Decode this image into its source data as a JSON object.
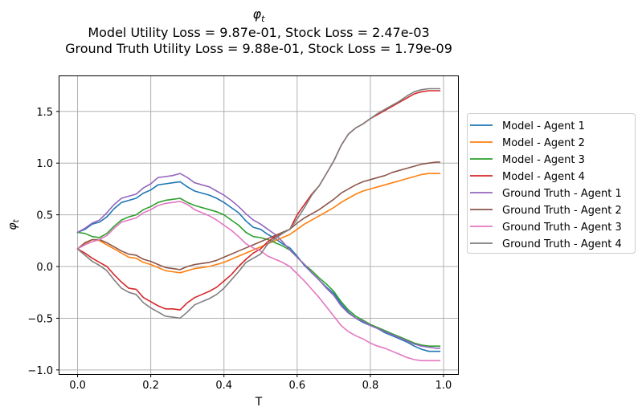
{
  "chart_data": {
    "type": "line",
    "title_symbol": "φ",
    "title_subscript": "t",
    "title_line2": "Model Utility Loss = 9.87e-01, Stock Loss = 2.47e-03",
    "title_line3": "Ground Truth Utility Loss = 9.88e-01, Stock Loss = 1.79e-09",
    "xlabel": "T",
    "ylabel_symbol": "φ",
    "ylabel_subscript": "t",
    "xlim": [
      -0.0495,
      1.0395
    ],
    "ylim": [
      -1.04,
      1.84
    ],
    "xticks": [
      0.0,
      0.2,
      0.4,
      0.6,
      0.8,
      1.0
    ],
    "xtick_labels": [
      "0.0",
      "0.2",
      "0.4",
      "0.6",
      "0.8",
      "1.0"
    ],
    "yticks": [
      -1.0,
      -0.5,
      0.0,
      0.5,
      1.0,
      1.5
    ],
    "ytick_labels": [
      "−1.0",
      "−0.5",
      "0.0",
      "0.5",
      "1.0",
      "1.5"
    ],
    "grid": true,
    "legend_position": "right, outside",
    "x": [
      0.0,
      0.02,
      0.04,
      0.06,
      0.08,
      0.1,
      0.12,
      0.14,
      0.16,
      0.18,
      0.2,
      0.22,
      0.24,
      0.26,
      0.28,
      0.3,
      0.32,
      0.34,
      0.36,
      0.38,
      0.4,
      0.42,
      0.44,
      0.46,
      0.48,
      0.5,
      0.52,
      0.54,
      0.56,
      0.58,
      0.6,
      0.62,
      0.64,
      0.66,
      0.68,
      0.7,
      0.72,
      0.74,
      0.76,
      0.78,
      0.8,
      0.82,
      0.84,
      0.86,
      0.88,
      0.9,
      0.92,
      0.94,
      0.96,
      0.98,
      0.99
    ],
    "series": [
      {
        "name": "Model - Agent 1",
        "color": "#1f77b4",
        "values": [
          0.33,
          0.36,
          0.41,
          0.43,
          0.48,
          0.56,
          0.62,
          0.64,
          0.66,
          0.71,
          0.74,
          0.79,
          0.8,
          0.81,
          0.82,
          0.77,
          0.73,
          0.71,
          0.69,
          0.66,
          0.62,
          0.57,
          0.52,
          0.44,
          0.38,
          0.36,
          0.31,
          0.27,
          0.22,
          0.18,
          0.1,
          0.01,
          -0.06,
          -0.13,
          -0.2,
          -0.26,
          -0.36,
          -0.44,
          -0.5,
          -0.54,
          -0.57,
          -0.6,
          -0.64,
          -0.67,
          -0.7,
          -0.73,
          -0.77,
          -0.8,
          -0.82,
          -0.82,
          -0.82
        ]
      },
      {
        "name": "Model - Agent 2",
        "color": "#ff7f0e",
        "values": [
          0.17,
          0.22,
          0.26,
          0.25,
          0.21,
          0.17,
          0.13,
          0.09,
          0.08,
          0.04,
          0.02,
          -0.01,
          -0.04,
          -0.05,
          -0.06,
          -0.04,
          -0.02,
          -0.01,
          0.0,
          0.02,
          0.04,
          0.07,
          0.1,
          0.13,
          0.16,
          0.19,
          0.22,
          0.25,
          0.28,
          0.31,
          0.36,
          0.41,
          0.45,
          0.49,
          0.53,
          0.57,
          0.62,
          0.66,
          0.7,
          0.73,
          0.75,
          0.77,
          0.79,
          0.81,
          0.83,
          0.85,
          0.87,
          0.89,
          0.9,
          0.9,
          0.9
        ]
      },
      {
        "name": "Model - Agent 3",
        "color": "#2ca02c",
        "values": [
          0.33,
          0.32,
          0.29,
          0.28,
          0.32,
          0.39,
          0.45,
          0.48,
          0.5,
          0.55,
          0.58,
          0.62,
          0.64,
          0.65,
          0.66,
          0.62,
          0.59,
          0.57,
          0.55,
          0.53,
          0.5,
          0.45,
          0.4,
          0.33,
          0.29,
          0.28,
          0.26,
          0.23,
          0.2,
          0.16,
          0.09,
          0.02,
          -0.04,
          -0.11,
          -0.17,
          -0.24,
          -0.34,
          -0.42,
          -0.48,
          -0.52,
          -0.56,
          -0.59,
          -0.62,
          -0.65,
          -0.68,
          -0.71,
          -0.74,
          -0.76,
          -0.77,
          -0.77,
          -0.77
        ]
      },
      {
        "name": "Model - Agent 4",
        "color": "#d62728",
        "values": [
          0.17,
          0.13,
          0.08,
          0.04,
          0.0,
          -0.08,
          -0.15,
          -0.21,
          -0.22,
          -0.3,
          -0.34,
          -0.38,
          -0.41,
          -0.41,
          -0.42,
          -0.35,
          -0.3,
          -0.27,
          -0.24,
          -0.2,
          -0.14,
          -0.08,
          0.0,
          0.07,
          0.13,
          0.17,
          0.24,
          0.29,
          0.33,
          0.36,
          0.5,
          0.6,
          0.7,
          0.78,
          0.9,
          1.02,
          1.17,
          1.28,
          1.34,
          1.38,
          1.43,
          1.47,
          1.51,
          1.55,
          1.59,
          1.63,
          1.67,
          1.69,
          1.7,
          1.7,
          1.7
        ]
      },
      {
        "name": "Ground Truth - Agent 1",
        "color": "#9467bd",
        "values": [
          0.33,
          0.37,
          0.42,
          0.45,
          0.52,
          0.6,
          0.66,
          0.68,
          0.7,
          0.76,
          0.8,
          0.86,
          0.87,
          0.88,
          0.9,
          0.86,
          0.81,
          0.79,
          0.77,
          0.73,
          0.69,
          0.64,
          0.58,
          0.51,
          0.45,
          0.41,
          0.36,
          0.31,
          0.24,
          0.16,
          0.09,
          0.02,
          -0.06,
          -0.13,
          -0.21,
          -0.28,
          -0.38,
          -0.45,
          -0.5,
          -0.53,
          -0.57,
          -0.6,
          -0.63,
          -0.66,
          -0.69,
          -0.72,
          -0.75,
          -0.77,
          -0.78,
          -0.79,
          -0.79
        ]
      },
      {
        "name": "Ground Truth - Agent 2",
        "color": "#8c564b",
        "values": [
          0.17,
          0.23,
          0.26,
          0.26,
          0.23,
          0.19,
          0.15,
          0.12,
          0.11,
          0.07,
          0.05,
          0.02,
          -0.01,
          -0.02,
          -0.03,
          0.0,
          0.02,
          0.03,
          0.04,
          0.06,
          0.09,
          0.12,
          0.15,
          0.18,
          0.21,
          0.24,
          0.27,
          0.3,
          0.33,
          0.36,
          0.42,
          0.47,
          0.51,
          0.55,
          0.6,
          0.65,
          0.71,
          0.75,
          0.79,
          0.82,
          0.84,
          0.86,
          0.88,
          0.91,
          0.93,
          0.95,
          0.97,
          0.99,
          1.0,
          1.01,
          1.01
        ]
      },
      {
        "name": "Ground Truth - Agent 3",
        "color": "#e377c2",
        "values": [
          0.17,
          0.21,
          0.24,
          0.26,
          0.3,
          0.37,
          0.43,
          0.45,
          0.47,
          0.52,
          0.55,
          0.59,
          0.61,
          0.62,
          0.63,
          0.6,
          0.55,
          0.52,
          0.49,
          0.45,
          0.4,
          0.35,
          0.29,
          0.22,
          0.18,
          0.15,
          0.1,
          0.07,
          0.04,
          0.0,
          -0.07,
          -0.14,
          -0.22,
          -0.3,
          -0.39,
          -0.48,
          -0.57,
          -0.63,
          -0.67,
          -0.7,
          -0.74,
          -0.77,
          -0.79,
          -0.82,
          -0.85,
          -0.88,
          -0.9,
          -0.91,
          -0.91,
          -0.91,
          -0.91
        ]
      },
      {
        "name": "Ground Truth - Agent 4",
        "color": "#7f7f7f",
        "values": [
          0.17,
          0.11,
          0.05,
          0.01,
          -0.04,
          -0.13,
          -0.21,
          -0.25,
          -0.27,
          -0.35,
          -0.4,
          -0.44,
          -0.48,
          -0.49,
          -0.5,
          -0.44,
          -0.37,
          -0.34,
          -0.31,
          -0.27,
          -0.21,
          -0.13,
          -0.05,
          0.04,
          0.08,
          0.12,
          0.22,
          0.27,
          0.32,
          0.36,
          0.46,
          0.57,
          0.69,
          0.78,
          0.9,
          1.02,
          1.17,
          1.28,
          1.34,
          1.38,
          1.43,
          1.48,
          1.52,
          1.56,
          1.6,
          1.65,
          1.69,
          1.71,
          1.72,
          1.72,
          1.72
        ]
      }
    ]
  }
}
